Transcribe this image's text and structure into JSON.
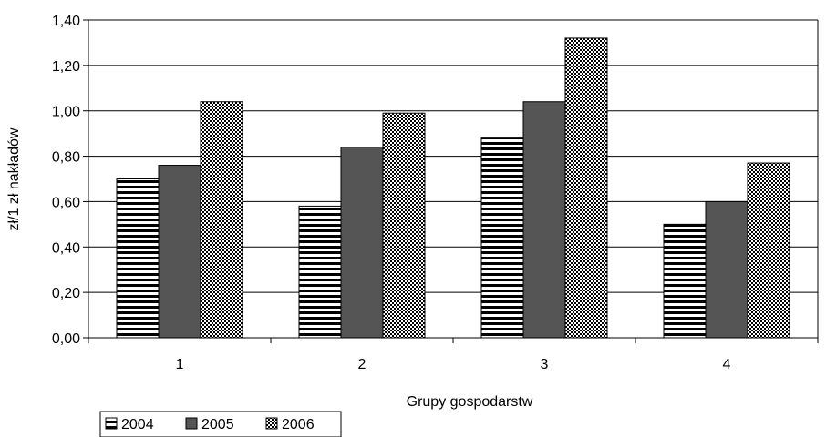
{
  "chart_data": {
    "type": "bar",
    "title": "",
    "xlabel": "Grupy gospodarstw",
    "ylabel": "zł/1 zł nakładów",
    "categories": [
      "1",
      "2",
      "3",
      "4"
    ],
    "series": [
      {
        "name": "2004",
        "values": [
          0.7,
          0.58,
          0.88,
          0.5
        ]
      },
      {
        "name": "2005",
        "values": [
          0.76,
          0.84,
          1.04,
          0.6
        ]
      },
      {
        "name": "2006",
        "values": [
          1.04,
          0.99,
          1.32,
          0.77
        ]
      }
    ],
    "ylim": [
      0,
      1.4
    ],
    "ytick_step": 0.2,
    "ytick_labels": [
      "0,00",
      "0,20",
      "0,40",
      "0,60",
      "0,80",
      "1,00",
      "1,20",
      "1,40"
    ],
    "grid": true,
    "legend_position": "bottom-left",
    "series_fills": [
      "horizontal-stripes",
      "solid-dark-gray",
      "dotted-checker"
    ],
    "colors": {
      "dark_bar": "#555555",
      "stroke": "#000000"
    }
  }
}
